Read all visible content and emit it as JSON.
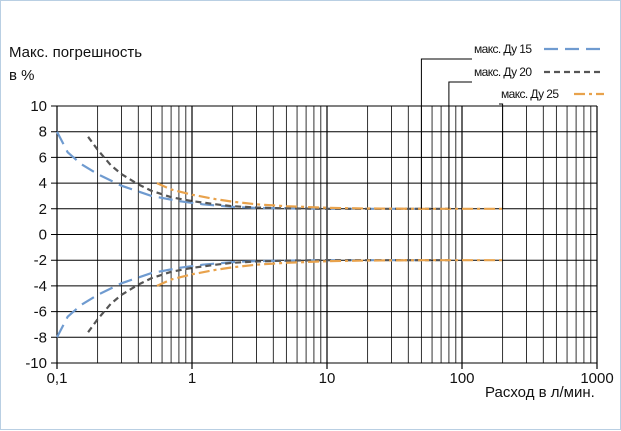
{
  "chart_data": {
    "type": "line",
    "ylabel_line1": "Макс. погрешность",
    "ylabel_line2": "в %",
    "xlabel": "Расход в л/мин.",
    "xscale": "log",
    "xlim": [
      0.1,
      1000
    ],
    "ylim": [
      -10,
      10
    ],
    "grid": true,
    "legend_position": "top-right",
    "yticks": [
      10,
      8,
      6,
      4,
      2,
      0,
      -2,
      -4,
      -6,
      -8,
      -10
    ],
    "xticks": [
      {
        "value": 0.1,
        "label": "0,1"
      },
      {
        "value": 1,
        "label": "1"
      },
      {
        "value": 10,
        "label": "10"
      },
      {
        "value": 100,
        "label": "100"
      },
      {
        "value": 1000,
        "label": "1000"
      }
    ],
    "series": [
      {
        "name": "макс. Ду 15",
        "color": "#6f9bd0",
        "dash": "long-dash",
        "x": [
          0.1,
          0.12,
          0.15,
          0.2,
          0.3,
          0.5,
          0.8,
          1.2,
          2,
          3,
          5,
          10,
          20,
          50
        ],
        "upper": [
          8.0,
          6.4,
          5.5,
          4.7,
          3.8,
          3.0,
          2.6,
          2.35,
          2.15,
          2.07,
          2.03,
          2.0,
          2.0,
          2.0
        ],
        "lower": [
          -8.0,
          -6.4,
          -5.5,
          -4.7,
          -3.8,
          -3.0,
          -2.6,
          -2.35,
          -2.15,
          -2.07,
          -2.03,
          -2.0,
          -2.0,
          -2.0
        ]
      },
      {
        "name": "макс. Ду 20",
        "color": "#555555",
        "dash": "short-dash",
        "x": [
          0.17,
          0.2,
          0.25,
          0.3,
          0.4,
          0.5,
          0.7,
          1,
          1.5,
          2,
          3,
          5,
          10,
          20,
          80
        ],
        "upper": [
          7.6,
          6.6,
          5.4,
          4.7,
          3.9,
          3.4,
          2.9,
          2.6,
          2.35,
          2.2,
          2.1,
          2.03,
          2.0,
          2.0,
          2.0
        ],
        "lower": [
          -7.6,
          -6.6,
          -5.4,
          -4.7,
          -3.9,
          -3.4,
          -2.9,
          -2.6,
          -2.35,
          -2.2,
          -2.1,
          -2.03,
          -2.0,
          -2.0,
          -2.0
        ]
      },
      {
        "name": "макс. Ду 25",
        "color": "#e8a24c",
        "dash": "dash-dot",
        "x": [
          0.55,
          0.7,
          1,
          1.5,
          2,
          3,
          5,
          10,
          20,
          50,
          200
        ],
        "upper": [
          4.0,
          3.5,
          3.1,
          2.75,
          2.55,
          2.35,
          2.2,
          2.08,
          2.02,
          2.0,
          2.0
        ],
        "lower": [
          -4.0,
          -3.5,
          -3.1,
          -2.75,
          -2.55,
          -2.35,
          -2.2,
          -2.08,
          -2.02,
          -2.0,
          -2.0
        ]
      }
    ]
  }
}
